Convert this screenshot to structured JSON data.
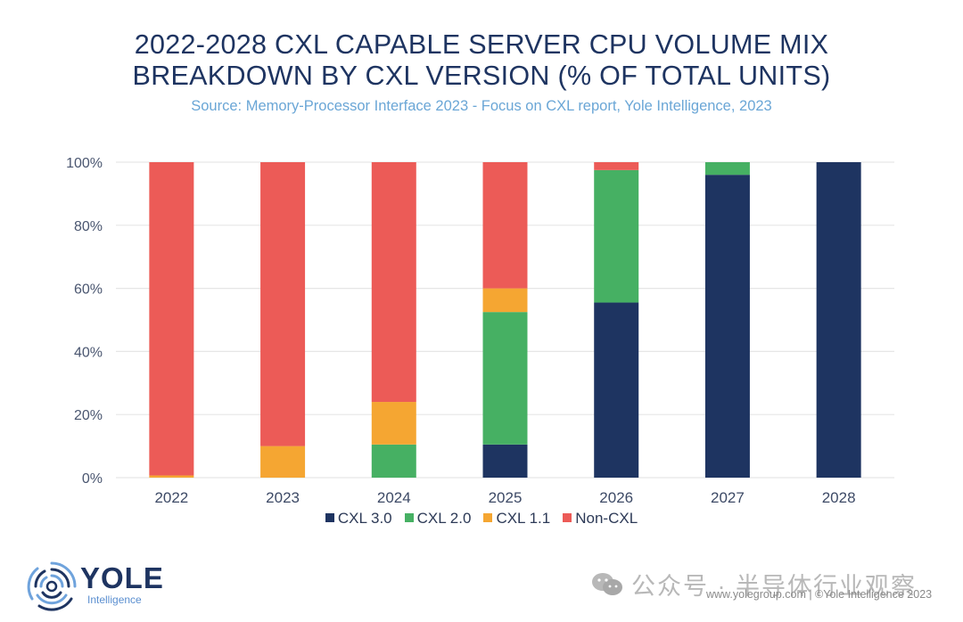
{
  "chart_data": {
    "type": "bar",
    "stacked": true,
    "title": "2022-2028 CXL CAPABLE SERVER CPU VOLUME MIX BREAKDOWN BY CXL VERSION (% OF TOTAL UNITS)",
    "title_lines": [
      "2022-2028 CXL CAPABLE SERVER CPU VOLUME MIX",
      "BREAKDOWN BY CXL VERSION (% OF TOTAL UNITS)"
    ],
    "subtitle": "Source: Memory-Processor Interface 2023 - Focus on CXL  report, Yole Intelligence, 2023",
    "xlabel": "",
    "ylabel": "",
    "categories": [
      "2022",
      "2023",
      "2024",
      "2025",
      "2026",
      "2027",
      "2028"
    ],
    "ylim": [
      0,
      100
    ],
    "yticks": [
      0,
      20,
      40,
      60,
      80,
      100
    ],
    "ytick_labels": [
      "0%",
      "20%",
      "40%",
      "60%",
      "80%",
      "100%"
    ],
    "grid": true,
    "legend_position": "bottom",
    "series": [
      {
        "name": "CXL 3.0",
        "color": "#1e3461",
        "values": [
          0,
          0,
          0,
          10.5,
          55.5,
          96,
          100
        ]
      },
      {
        "name": "CXL 2.0",
        "color": "#46b063",
        "values": [
          0,
          0,
          10.5,
          42,
          42,
          4,
          0
        ]
      },
      {
        "name": "CXL 1.1",
        "color": "#f5a632",
        "values": [
          0.7,
          10,
          13.5,
          7.5,
          0,
          0,
          0
        ]
      },
      {
        "name": "Non-CXL",
        "color": "#ec5b57",
        "values": [
          99.3,
          90,
          76,
          40,
          2.5,
          0,
          0
        ]
      }
    ]
  },
  "branding": {
    "logo_word": "YOLE",
    "logo_sub": "Intelligence",
    "footer_credit": "www.yolegroup.com | ©Yole Intelligence 2023",
    "watermark": "公众号 · 半导体行业观察"
  }
}
